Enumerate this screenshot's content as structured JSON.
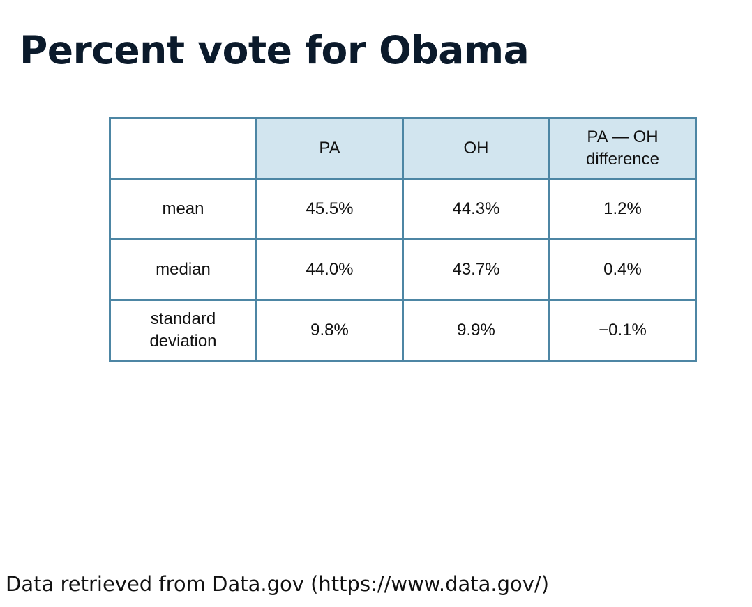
{
  "slide": {
    "title": "Percent vote for Obama",
    "source_note": "Data retrieved from Data.gov (https://www.data.gov/)"
  },
  "table": {
    "columns": [
      "",
      "PA",
      "OH",
      "PA — OH\ndifference"
    ],
    "rows": [
      {
        "label": "mean",
        "pa": "45.5%",
        "oh": "44.3%",
        "diff": "1.2%"
      },
      {
        "label": "median",
        "pa": "44.0%",
        "oh": "43.7%",
        "diff": "0.4%"
      },
      {
        "label": "standard\ndeviation",
        "pa": "9.8%",
        "oh": "9.9%",
        "diff": "−0.1%"
      }
    ]
  },
  "colors": {
    "header_fill": "#d2e5ef",
    "border": "#4d86a4",
    "title": "#0b1a2b"
  }
}
